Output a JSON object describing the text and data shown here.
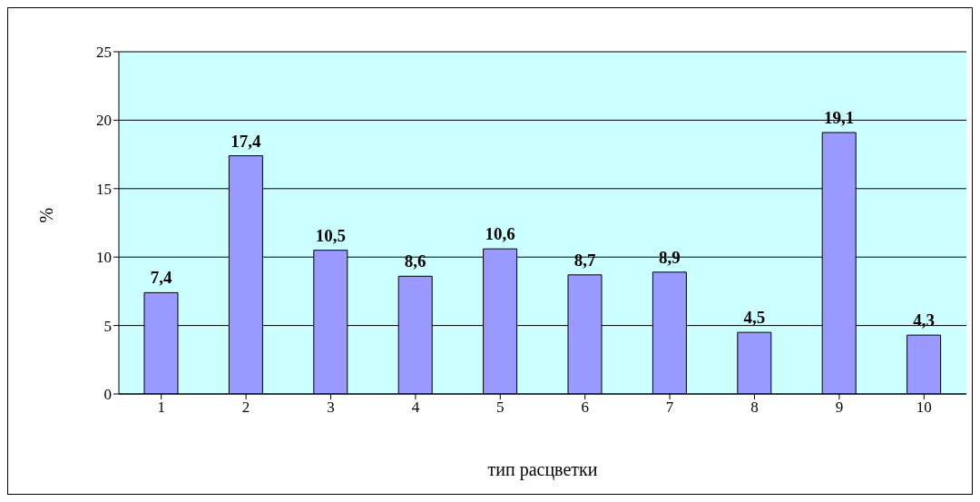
{
  "chart_data": {
    "type": "bar",
    "xlabel": "тип расцветки",
    "ylabel": "%",
    "categories": [
      "1",
      "2",
      "3",
      "4",
      "5",
      "6",
      "7",
      "8",
      "9",
      "10"
    ],
    "values": [
      7.4,
      17.4,
      10.5,
      8.6,
      10.6,
      8.7,
      8.9,
      4.5,
      19.1,
      4.3
    ],
    "value_labels": [
      "7,4",
      "17,4",
      "10,5",
      "8,6",
      "10,6",
      "8,7",
      "8,9",
      "4,5",
      "19,1",
      "4,3"
    ],
    "color": "#9999ff",
    "ylim": [
      0,
      25
    ],
    "yticks": [
      0,
      5,
      10,
      15,
      20,
      25
    ],
    "grid": "y",
    "legend": false
  }
}
